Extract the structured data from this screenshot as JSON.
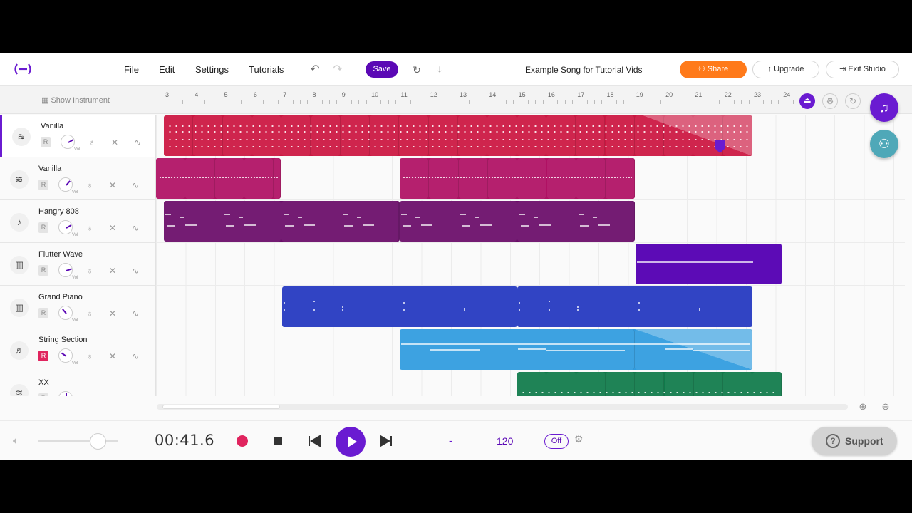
{
  "menu": {
    "file": "File",
    "edit": "Edit",
    "settings": "Settings",
    "tutorials": "Tutorials"
  },
  "toolbar": {
    "save": "Save"
  },
  "song_title": "Example Song for Tutorial Vids",
  "header_buttons": {
    "share": "Share",
    "upgrade": "Upgrade",
    "exit": "Exit Studio"
  },
  "show_instrument": "Show Instrument",
  "ruler": [
    "3",
    "4",
    "5",
    "6",
    "7",
    "8",
    "9",
    "10",
    "11",
    "12",
    "13",
    "14",
    "15",
    "16",
    "17",
    "18",
    "19",
    "20",
    "21",
    "22",
    "23",
    "24"
  ],
  "tracks": [
    {
      "name": "Vanilla",
      "icon": "drum-machine-icon",
      "record": "R",
      "vol": "Vol",
      "color": "#cc1540"
    },
    {
      "name": "Vanilla",
      "icon": "drum-machine-icon",
      "record": "R",
      "vol": "Vol",
      "color": "#b01063"
    },
    {
      "name": "Hangry 808",
      "icon": "guitar-icon",
      "record": "R",
      "vol": "Vol",
      "color": "#6a0b69"
    },
    {
      "name": "Flutter Wave",
      "icon": "synth-icon",
      "record": "R",
      "vol": "Vol",
      "color": "#5c0bb6"
    },
    {
      "name": "Grand Piano",
      "icon": "piano-icon",
      "record": "R",
      "vol": "Vol",
      "color": "#3144c4"
    },
    {
      "name": "String Section",
      "icon": "violin-icon",
      "record": "R",
      "vol": "Vol",
      "color": "#2f9bdf"
    },
    {
      "name": "XX",
      "icon": "drum-machine-icon",
      "record": "R",
      "vol": "Vol",
      "color": "#0f7a4a"
    }
  ],
  "transport": {
    "time": "00:41.6",
    "key": "-",
    "bpm": "120",
    "metronome": "Off"
  },
  "support": "Support"
}
